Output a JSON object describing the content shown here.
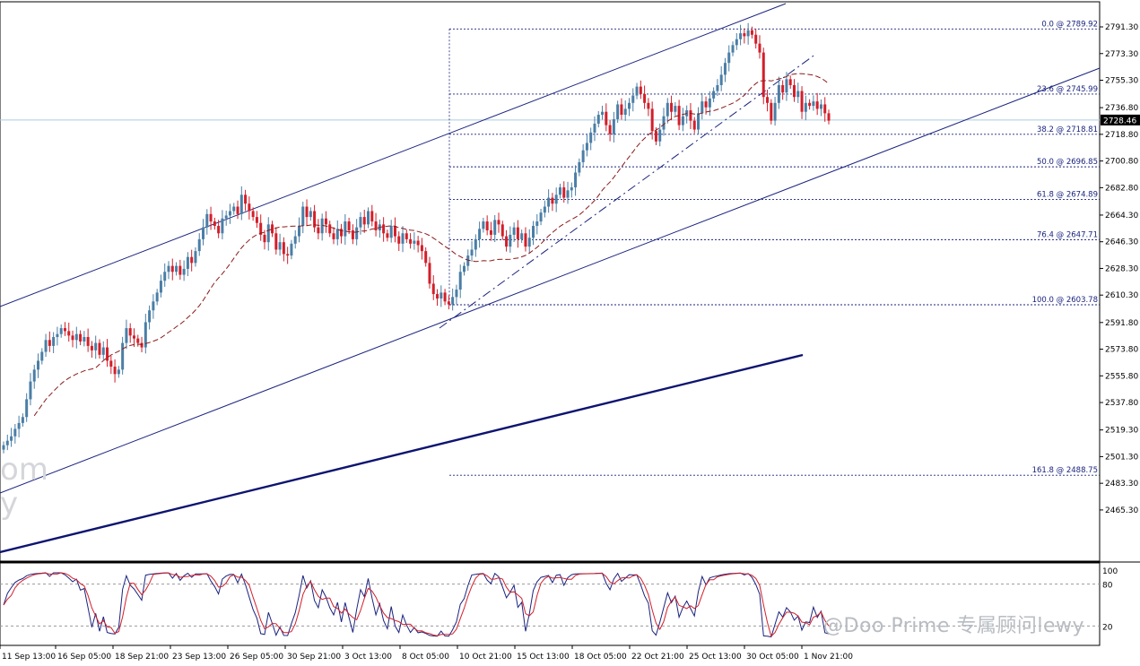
{
  "chart_data": {
    "type": "candlestick",
    "instrument_hint": "XAU/USD H4",
    "price_axis": {
      "ylim": [
        2465.3,
        2795.0
      ],
      "ticks": [
        "2791.30",
        "2773.30",
        "2755.30",
        "2736.80",
        "2718.80",
        "2700.80",
        "2682.80",
        "2664.30",
        "2646.30",
        "2628.30",
        "2610.30",
        "2591.80",
        "2573.80",
        "2555.80",
        "2537.80",
        "2519.30",
        "2501.30",
        "2483.30",
        "2465.30"
      ],
      "current_price": "2728.46"
    },
    "x_axis": {
      "labels": [
        "11 Sep 13:00",
        "16 Sep 05:00",
        "18 Sep 21:00",
        "23 Sep 13:00",
        "26 Sep 05:00",
        "30 Sep 21:00",
        "3 Oct 13:00",
        "8 Oct 05:00",
        "10 Oct 21:00",
        "15 Oct 13:00",
        "18 Oct 05:00",
        "22 Oct 21:00",
        "25 Oct 13:00",
        "30 Oct 05:00",
        "1 Nov 21:00"
      ]
    },
    "fibonacci": [
      {
        "label": "0.0 @ 2789.92",
        "price": 2789.92
      },
      {
        "label": "23.6 @ 2745.99",
        "price": 2745.99
      },
      {
        "label": "38.2 @ 2718.81",
        "price": 2718.81
      },
      {
        "label": "50.0 @ 2696.85",
        "price": 2696.85
      },
      {
        "label": "61.8 @ 2674.89",
        "price": 2674.89
      },
      {
        "label": "76.4 @ 2647.71",
        "price": 2647.71
      },
      {
        "label": "100.0 @ 2603.78",
        "price": 2603.78
      },
      {
        "label": "161.8 @ 2488.75",
        "price": 2488.75
      }
    ],
    "closes": [
      2509,
      2512,
      2515,
      2520,
      2524,
      2528,
      2540,
      2552,
      2560,
      2566,
      2572,
      2580,
      2576,
      2582,
      2584,
      2588,
      2586,
      2583,
      2580,
      2584,
      2579,
      2582,
      2576,
      2573,
      2578,
      2570,
      2575,
      2566,
      2562,
      2557,
      2560,
      2578,
      2588,
      2583,
      2581,
      2578,
      2575,
      2592,
      2600,
      2606,
      2612,
      2620,
      2626,
      2630,
      2626,
      2630,
      2624,
      2628,
      2636,
      2632,
      2640,
      2648,
      2656,
      2665,
      2660,
      2657,
      2652,
      2662,
      2664,
      2667,
      2670,
      2665,
      2678,
      2672,
      2667,
      2663,
      2659,
      2651,
      2646,
      2658,
      2652,
      2641,
      2646,
      2638,
      2637,
      2645,
      2650,
      2657,
      2670,
      2663,
      2667,
      2656,
      2652,
      2662,
      2658,
      2652,
      2648,
      2655,
      2650,
      2660,
      2654,
      2648,
      2656,
      2663,
      2658,
      2667,
      2660,
      2654,
      2658,
      2652,
      2649,
      2657,
      2650,
      2645,
      2652,
      2648,
      2645,
      2647,
      2644,
      2640,
      2632,
      2618,
      2611,
      2608,
      2612,
      2606,
      2604,
      2609,
      2614,
      2626,
      2630,
      2637,
      2641,
      2648,
      2655,
      2660,
      2654,
      2651,
      2661,
      2658,
      2650,
      2643,
      2651,
      2656,
      2648,
      2652,
      2643,
      2649,
      2657,
      2660,
      2666,
      2670,
      2676,
      2672,
      2678,
      2683,
      2676,
      2681,
      2683,
      2693,
      2700,
      2708,
      2713,
      2720,
      2726,
      2732,
      2734,
      2725,
      2719,
      2729,
      2739,
      2732,
      2736,
      2740,
      2745,
      2751,
      2746,
      2740,
      2736,
      2721,
      2714,
      2722,
      2731,
      2740,
      2734,
      2738,
      2725,
      2731,
      2735,
      2728,
      2722,
      2733,
      2741,
      2737,
      2743,
      2748,
      2752,
      2759,
      2767,
      2774,
      2779,
      2783,
      2787,
      2785,
      2789,
      2786,
      2780,
      2774,
      2744,
      2740,
      2728,
      2740,
      2752,
      2747,
      2756,
      2752,
      2744,
      2748,
      2734,
      2740,
      2738,
      2741,
      2736,
      2739,
      2733,
      2728
    ]
  },
  "watermark": {
    "text": "@Doo Prime 专属顾问lewy",
    "left_fragment": "om\ny"
  },
  "oscillator_axis": {
    "labels": [
      "100",
      "80",
      "20"
    ]
  }
}
